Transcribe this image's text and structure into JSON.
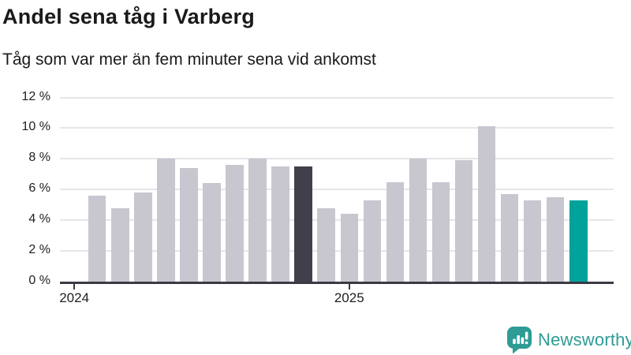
{
  "header": {
    "title": "Andel sena tåg i Varberg",
    "subtitle": "Tåg som var mer än fem minuter sena vid ankomst"
  },
  "chart_data": {
    "type": "bar",
    "title": "Andel sena tåg i Varberg",
    "subtitle": "Tåg som var mer än fem minuter sena vid ankomst",
    "unit": "%",
    "categories": [
      "2024-02",
      "2024-03",
      "2024-04",
      "2024-05",
      "2024-06",
      "2024-07",
      "2024-08",
      "2024-09",
      "2024-10",
      "2024-11",
      "2024-12",
      "2025-01",
      "2025-02",
      "2025-03",
      "2025-04",
      "2025-05",
      "2025-06",
      "2025-07",
      "2025-08",
      "2025-09",
      "2025-10",
      "2025-11"
    ],
    "values": [
      5.6,
      4.8,
      5.8,
      8.0,
      7.4,
      6.4,
      7.6,
      8.0,
      7.5,
      7.5,
      4.8,
      4.4,
      5.3,
      6.5,
      8.0,
      6.5,
      7.9,
      10.1,
      5.7,
      5.3,
      5.5,
      5.3
    ],
    "highlight_dark_index": 9,
    "highlight_teal_index": 21,
    "ylim": [
      0,
      12
    ],
    "yticks": [
      0,
      2,
      4,
      6,
      8,
      10,
      12
    ],
    "ytick_suffix": " %",
    "xticks": [
      {
        "label": "2024",
        "bar_index": -1
      },
      {
        "label": "2025",
        "bar_index": 11
      }
    ],
    "grid": true,
    "legend": false,
    "colors": {
      "bar_default": "#c8c7d0",
      "bar_dark": "#413f4c",
      "bar_teal": "#00a29a",
      "gridline": "#e6e5e8",
      "axis": "#3b3a44",
      "text": "#1a1a1a"
    }
  },
  "footer": {
    "brand": "Newsworthy",
    "brand_color": "#2e9b94",
    "logo_icon": "newsworthy-speech-bubble-barchart-icon"
  }
}
